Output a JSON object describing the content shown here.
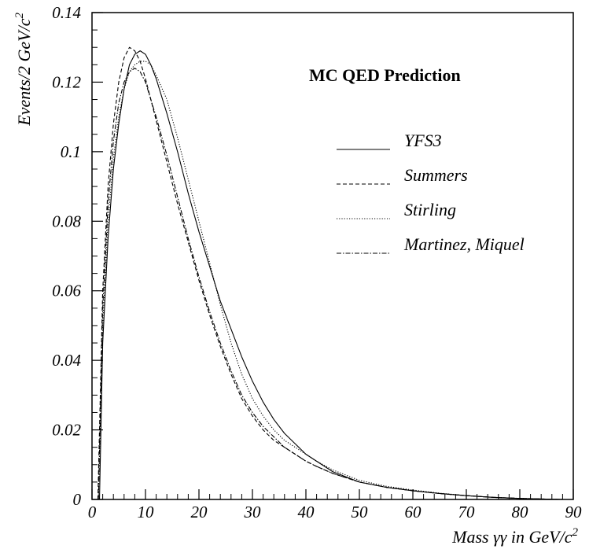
{
  "chart_data": {
    "type": "line",
    "title": "MC QED Prediction",
    "xlabel": "Mass γγ in GeV/c",
    "xlabel_sup": "2",
    "ylabel": "Events/2 GeV/c",
    "ylabel_sup": "2",
    "xlim": [
      0,
      90
    ],
    "ylim": [
      0,
      0.14
    ],
    "x_ticks": [
      0,
      10,
      20,
      30,
      40,
      50,
      60,
      70,
      80,
      90
    ],
    "x_tick_labels": [
      "0",
      "10",
      "20",
      "30",
      "40",
      "50",
      "60",
      "70",
      "80",
      "90"
    ],
    "y_ticks": [
      0,
      0.02,
      0.04,
      0.06,
      0.08,
      0.1,
      0.12,
      0.14
    ],
    "y_tick_labels": [
      "0",
      "0.02",
      "0.04",
      "0.06",
      "0.08",
      "0.1",
      "0.12",
      "0.14"
    ],
    "grid": false,
    "legend_position": "right",
    "series": [
      {
        "name": "YFS3",
        "style": "solid",
        "x": [
          1.4,
          2,
          3,
          4,
          5,
          6,
          7,
          8,
          9,
          10,
          11,
          12,
          14,
          16,
          18,
          20,
          22,
          24,
          26,
          28,
          30,
          32,
          34,
          36,
          38,
          40,
          42,
          45,
          50,
          55,
          60,
          65,
          70,
          75,
          80,
          85,
          88
        ],
        "y": [
          0,
          0.045,
          0.075,
          0.095,
          0.108,
          0.118,
          0.125,
          0.128,
          0.129,
          0.128,
          0.125,
          0.121,
          0.111,
          0.1,
          0.088,
          0.077,
          0.067,
          0.057,
          0.049,
          0.041,
          0.034,
          0.028,
          0.023,
          0.019,
          0.016,
          0.013,
          0.011,
          0.008,
          0.005,
          0.0035,
          0.0025,
          0.0017,
          0.0011,
          0.0006,
          0.0003,
          0.0001,
          0
        ]
      },
      {
        "name": "Summers",
        "style": "dashed",
        "x": [
          1.1,
          2,
          3,
          4,
          5,
          6,
          7,
          8,
          9,
          10,
          11,
          12,
          14,
          16,
          18,
          20,
          22,
          24,
          26,
          28,
          30,
          32,
          34,
          36,
          38,
          40,
          42,
          45,
          50,
          55,
          60,
          65,
          70,
          75,
          80,
          85,
          88
        ],
        "y": [
          0,
          0.06,
          0.09,
          0.108,
          0.12,
          0.127,
          0.13,
          0.129,
          0.126,
          0.121,
          0.115,
          0.109,
          0.097,
          0.085,
          0.074,
          0.063,
          0.053,
          0.044,
          0.036,
          0.029,
          0.024,
          0.02,
          0.017,
          0.015,
          0.013,
          0.011,
          0.0095,
          0.0075,
          0.005,
          0.0035,
          0.0025,
          0.0017,
          0.0011,
          0.0006,
          0.0003,
          0.0001,
          0
        ]
      },
      {
        "name": "Stirling",
        "style": "dotted",
        "x": [
          1.2,
          2,
          3,
          4,
          5,
          6,
          7,
          8,
          9,
          10,
          11,
          12,
          14,
          16,
          18,
          20,
          22,
          24,
          26,
          28,
          30,
          32,
          34,
          36,
          38,
          40,
          42,
          45,
          50,
          55,
          60,
          65,
          70,
          75,
          80,
          85,
          88
        ],
        "y": [
          0,
          0.05,
          0.08,
          0.098,
          0.11,
          0.118,
          0.123,
          0.125,
          0.126,
          0.126,
          0.125,
          0.122,
          0.115,
          0.104,
          0.092,
          0.08,
          0.068,
          0.056,
          0.045,
          0.036,
          0.029,
          0.024,
          0.02,
          0.017,
          0.015,
          0.013,
          0.011,
          0.0085,
          0.0055,
          0.0038,
          0.0027,
          0.0018,
          0.0011,
          0.0006,
          0.0003,
          0.0001,
          0
        ]
      },
      {
        "name": "Martinez, Miquel",
        "style": "dashdot",
        "x": [
          1.2,
          2,
          3,
          4,
          5,
          6,
          7,
          8,
          9,
          10,
          11,
          12,
          14,
          16,
          18,
          20,
          22,
          24,
          26,
          28,
          30,
          32,
          34,
          36,
          38,
          40,
          42,
          45,
          50,
          55,
          60,
          65,
          70,
          75,
          80,
          85,
          88
        ],
        "y": [
          0,
          0.055,
          0.085,
          0.103,
          0.114,
          0.12,
          0.123,
          0.124,
          0.123,
          0.12,
          0.115,
          0.11,
          0.099,
          0.087,
          0.075,
          0.064,
          0.054,
          0.045,
          0.037,
          0.03,
          0.025,
          0.021,
          0.018,
          0.015,
          0.013,
          0.011,
          0.0095,
          0.0075,
          0.005,
          0.0035,
          0.0025,
          0.0017,
          0.0011,
          0.0006,
          0.0003,
          0.0001,
          0
        ]
      }
    ]
  }
}
